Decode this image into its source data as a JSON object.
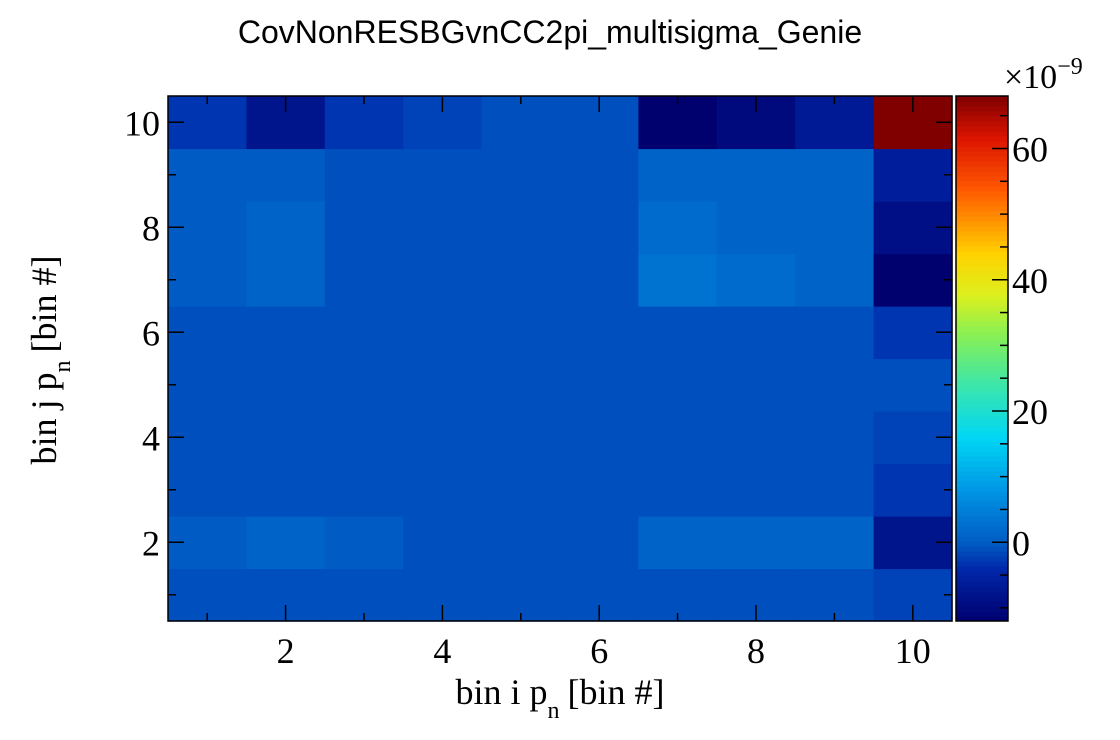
{
  "chart_data": {
    "type": "heatmap",
    "title": "CovNonRESBGvnCC2pi_multisigma_Genie",
    "xlabel": {
      "main": "bin i p",
      "sub": "n",
      "unit": "[bin #]"
    },
    "ylabel": {
      "main": "bin j p",
      "sub": "n",
      "unit": "[bin #]"
    },
    "x_range": [
      0.5,
      10.5
    ],
    "y_range": [
      0.5,
      10.5
    ],
    "x_ticks": [
      "2",
      "4",
      "6",
      "8",
      "10"
    ],
    "y_ticks": [
      "2",
      "4",
      "6",
      "8",
      "10"
    ],
    "colorbar": {
      "multiplier_text": "×10",
      "multiplier_exp": "−9",
      "range": [
        -12,
        68
      ],
      "ticks": [
        "0",
        "20",
        "40",
        "60"
      ],
      "palette": "rainbow"
    },
    "rows_y": [
      1,
      2,
      3,
      4,
      5,
      6,
      7,
      8,
      9,
      10
    ],
    "values": [
      [
        -1,
        -1,
        -1,
        -1,
        -1,
        -1,
        -1,
        -1,
        -1,
        -2
      ],
      [
        0,
        1,
        0,
        -1,
        -1,
        -1,
        1,
        1,
        1,
        -8
      ],
      [
        -1,
        -1,
        -1,
        -1,
        -1,
        -1,
        -1,
        -1,
        -1,
        -3
      ],
      [
        -1,
        -1,
        -1,
        -1,
        -1,
        -1,
        -1,
        -1,
        -1,
        -2
      ],
      [
        -1,
        -1,
        -1,
        -1,
        -1,
        -1,
        -1,
        -1,
        -1,
        -1
      ],
      [
        -1,
        -1,
        -1,
        -1,
        -1,
        -1,
        -1,
        -1,
        -1,
        -3
      ],
      [
        0,
        1,
        -1,
        -1,
        -1,
        -1,
        3,
        2,
        1,
        -12
      ],
      [
        0,
        1,
        -1,
        -1,
        -1,
        -1,
        2,
        1,
        1,
        -9
      ],
      [
        0,
        0,
        -1,
        -1,
        -1,
        -1,
        1,
        1,
        1,
        -6
      ],
      [
        -3,
        -8,
        -3,
        -2,
        -1,
        -1,
        -12,
        -10,
        -7,
        68
      ]
    ]
  }
}
